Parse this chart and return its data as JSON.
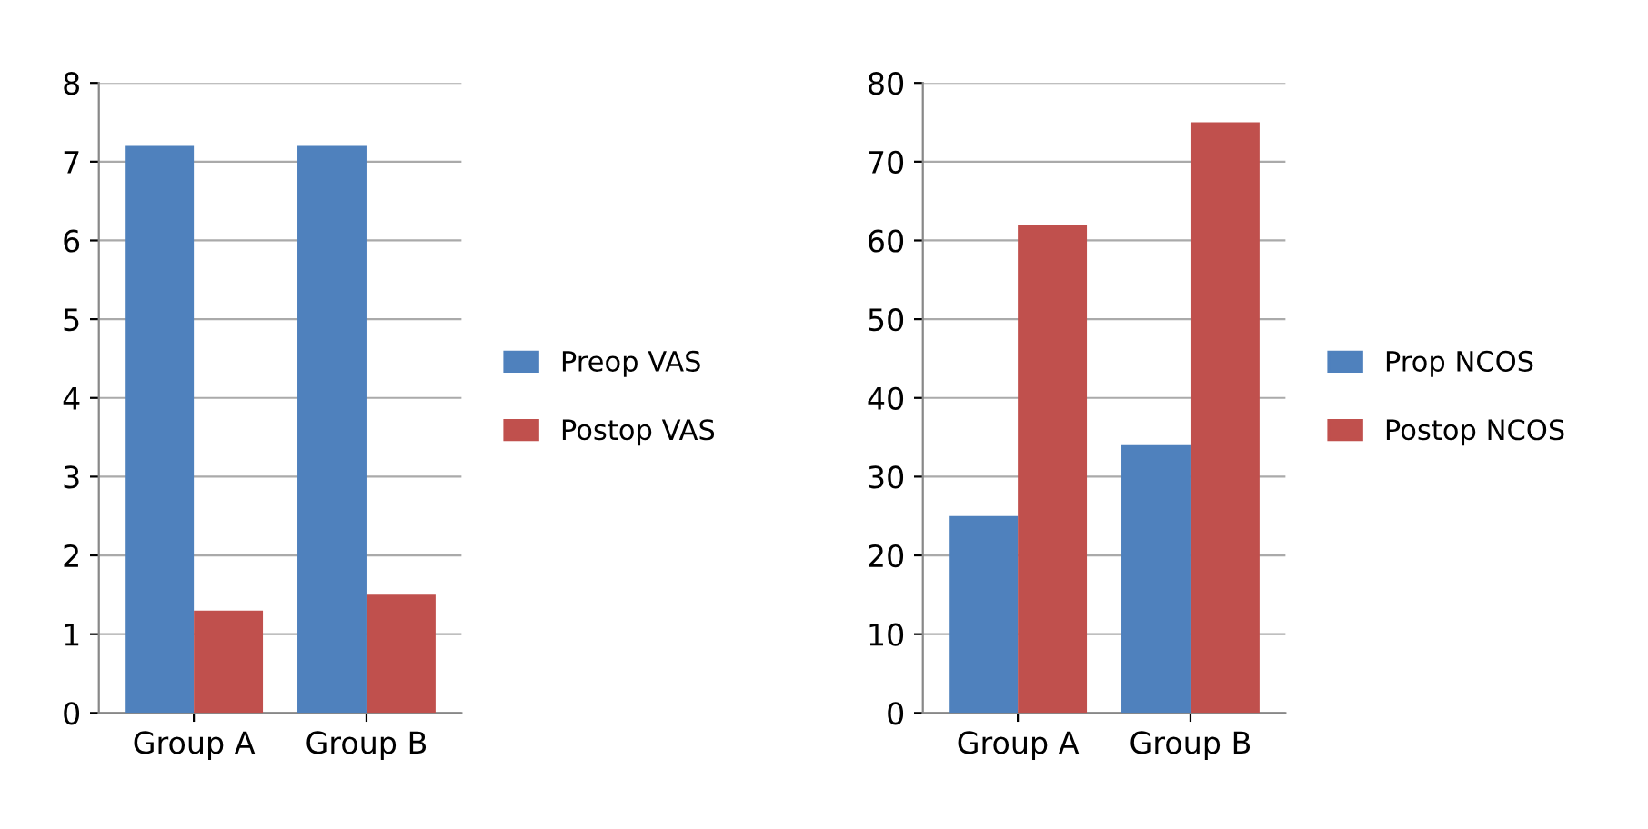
{
  "chart_data": [
    {
      "type": "bar",
      "categories": [
        "Group A",
        "Group B"
      ],
      "ylim": [
        0,
        8
      ],
      "yticks": [
        0,
        1,
        2,
        3,
        4,
        5,
        6,
        7,
        8
      ],
      "grid": "y",
      "legend": "right",
      "series": [
        {
          "name": "Preop VAS",
          "color": "#4f81bd",
          "values": [
            7.2,
            7.2
          ]
        },
        {
          "name": "Postop VAS",
          "color": "#c0504d",
          "values": [
            1.3,
            1.5
          ]
        }
      ]
    },
    {
      "type": "bar",
      "categories": [
        "Group A",
        "Group B"
      ],
      "ylim": [
        0,
        80
      ],
      "yticks": [
        0,
        10,
        20,
        30,
        40,
        50,
        60,
        70,
        80
      ],
      "grid": "y",
      "legend": "right",
      "series": [
        {
          "name": "Prop NCOS",
          "color": "#4f81bd",
          "values": [
            25,
            34
          ]
        },
        {
          "name": "Postop NCOS",
          "color": "#c0504d",
          "values": [
            62,
            75
          ]
        }
      ]
    }
  ]
}
